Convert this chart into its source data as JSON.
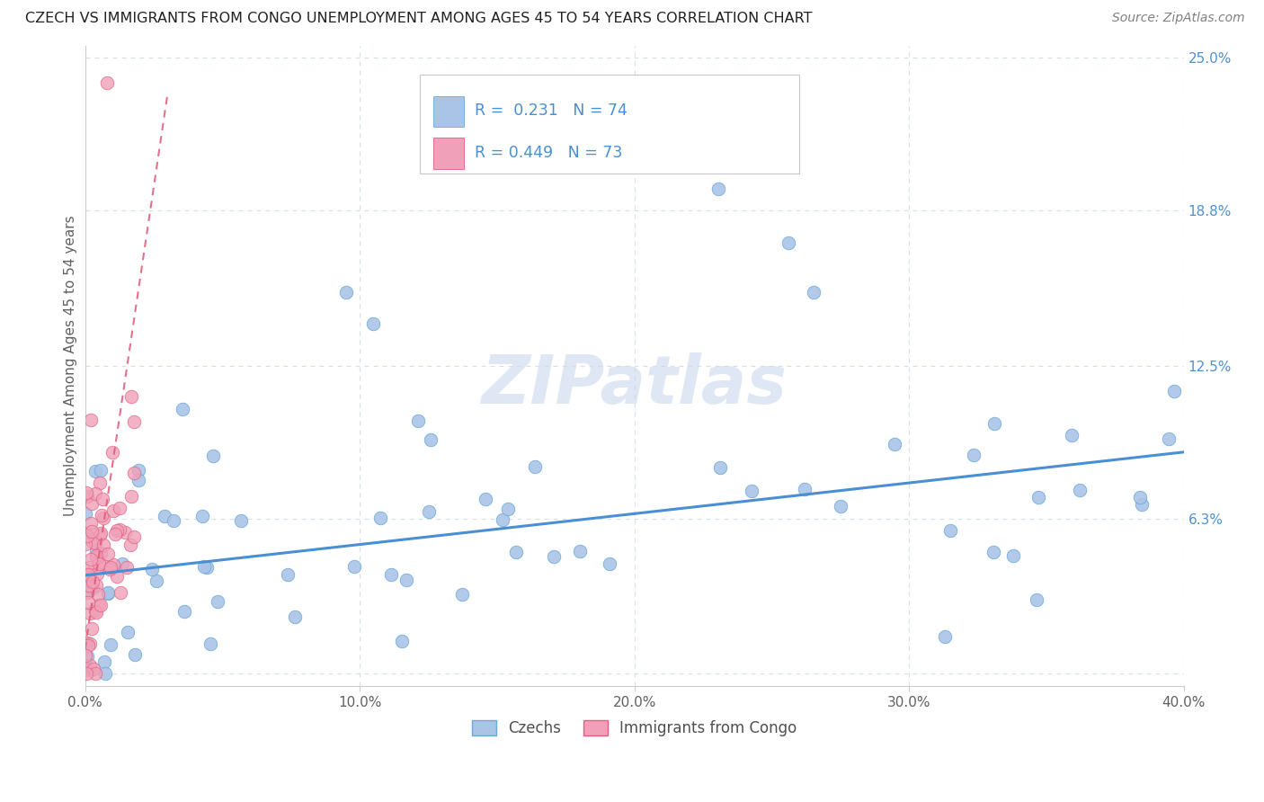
{
  "title": "CZECH VS IMMIGRANTS FROM CONGO UNEMPLOYMENT AMONG AGES 45 TO 54 YEARS CORRELATION CHART",
  "source": "Source: ZipAtlas.com",
  "ylabel": "Unemployment Among Ages 45 to 54 years",
  "legend1_label": "Czechs",
  "legend2_label": "Immigrants from Congo",
  "R1": "0.231",
  "N1": "74",
  "R2": "0.449",
  "N2": "73",
  "color_czech": "#aac4e8",
  "color_czech_edge": "#6aaad4",
  "color_czech_line": "#4a8fd4",
  "color_congo": "#f0a0b8",
  "color_congo_edge": "#e06080",
  "color_congo_line": "#e05878",
  "color_text_blue": "#4a8fd4",
  "color_text_dark": "#202020",
  "color_text_gray": "#808080",
  "color_axis_label": "#606060",
  "color_ytick_right": "#5090d0",
  "color_grid": "#d8e0e8",
  "color_background": "#ffffff",
  "color_watermark": "#c8d8eb",
  "xlim": [
    0.0,
    0.4
  ],
  "ylim": [
    -0.005,
    0.255
  ],
  "xticks": [
    0.0,
    0.1,
    0.2,
    0.3,
    0.4
  ],
  "xticklabels": [
    "0.0%",
    "10.0%",
    "20.0%",
    "30.0%",
    "40.0%"
  ],
  "yticks_right": [
    0.0,
    0.063,
    0.125,
    0.188,
    0.25
  ],
  "yticklabels_right": [
    "",
    "6.3%",
    "12.5%",
    "18.8%",
    "25.0%"
  ],
  "czech_line_x": [
    0.0,
    0.4
  ],
  "czech_line_y": [
    0.04,
    0.09
  ],
  "congo_line_x": [
    0.0,
    0.03
  ],
  "congo_line_y": [
    0.01,
    0.235
  ]
}
